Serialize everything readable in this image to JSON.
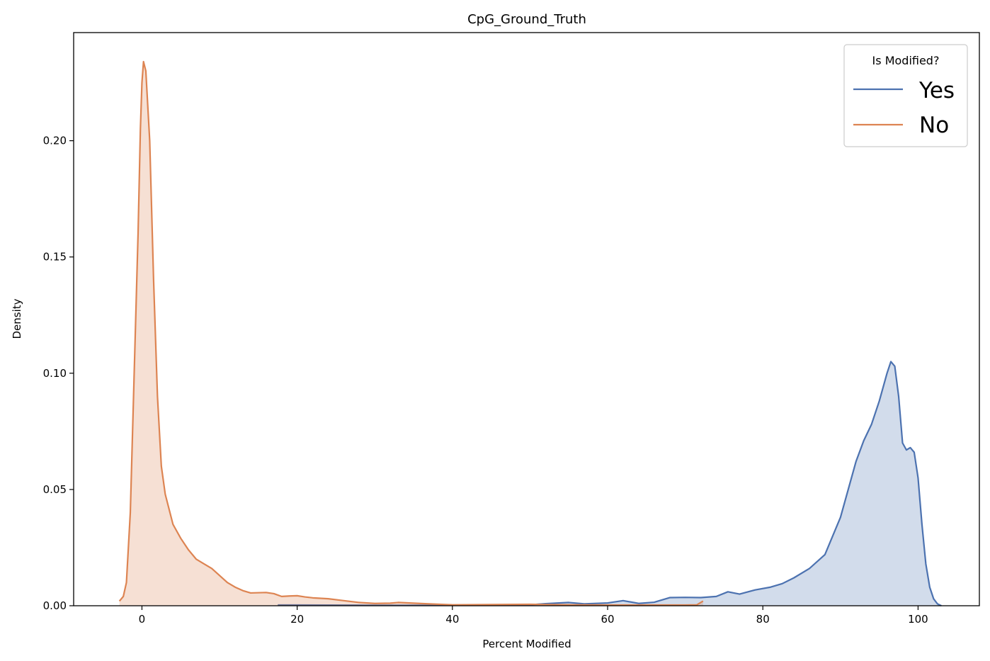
{
  "chart_data": {
    "type": "area",
    "title": "CpG_Ground_Truth",
    "xlabel": "Percent Modified",
    "ylabel": "Density",
    "xlim": [
      -8.8,
      107.9
    ],
    "ylim": [
      0,
      0.2465
    ],
    "x_ticks": [
      0,
      20,
      40,
      60,
      80,
      100
    ],
    "x_tick_labels": [
      "0",
      "20",
      "40",
      "60",
      "80",
      "100"
    ],
    "y_ticks": [
      0.0,
      0.05,
      0.1,
      0.15,
      0.2
    ],
    "y_tick_labels": [
      "0.00",
      "0.05",
      "0.10",
      "0.15",
      "0.20"
    ],
    "grid": false,
    "legend": {
      "title": "Is Modified?",
      "placement": "top-right"
    },
    "series": [
      {
        "name": "Yes",
        "color": "#4c72b0",
        "x": [
          17.5,
          20,
          30,
          40,
          45,
          50,
          52,
          55,
          57,
          60,
          62,
          64,
          66,
          68,
          70,
          72,
          74,
          75.5,
          77,
          79,
          81,
          82.5,
          84,
          86,
          88,
          90,
          91,
          92,
          93,
          94,
          95,
          96,
          96.5,
          97,
          97.5,
          98,
          98.5,
          99,
          99.5,
          100,
          100.5,
          101,
          101.5,
          102,
          102.5,
          103
        ],
        "y": [
          0.0003,
          0.0003,
          0.0002,
          0.0002,
          0.0003,
          0.0004,
          0.0009,
          0.0014,
          0.0008,
          0.0012,
          0.0022,
          0.001,
          0.0015,
          0.0035,
          0.0036,
          0.0035,
          0.004,
          0.006,
          0.005,
          0.0068,
          0.008,
          0.0095,
          0.012,
          0.016,
          0.022,
          0.038,
          0.05,
          0.062,
          0.071,
          0.078,
          0.088,
          0.1,
          0.105,
          0.103,
          0.09,
          0.07,
          0.067,
          0.068,
          0.066,
          0.055,
          0.035,
          0.018,
          0.008,
          0.003,
          0.0008,
          0.0
        ]
      },
      {
        "name": "No",
        "color": "#dd8452",
        "x": [
          -2.9,
          -2.4,
          -2,
          -1.5,
          -1,
          -0.5,
          -0.2,
          0,
          0.2,
          0.5,
          1,
          1.5,
          2,
          2.5,
          3,
          4,
          5,
          6,
          7,
          8,
          9,
          10,
          11,
          12,
          13,
          14,
          16,
          17,
          18,
          19,
          20,
          21,
          22,
          24,
          26,
          28,
          30,
          32,
          33,
          35,
          37,
          40,
          45,
          50,
          55,
          60,
          65,
          70,
          71.5,
          72.3
        ],
        "y": [
          0.002,
          0.004,
          0.01,
          0.04,
          0.1,
          0.16,
          0.205,
          0.225,
          0.234,
          0.23,
          0.2,
          0.14,
          0.09,
          0.06,
          0.048,
          0.035,
          0.029,
          0.024,
          0.02,
          0.018,
          0.016,
          0.013,
          0.01,
          0.008,
          0.0065,
          0.0055,
          0.0057,
          0.0052,
          0.004,
          0.0042,
          0.0043,
          0.0038,
          0.0034,
          0.003,
          0.0022,
          0.0014,
          0.001,
          0.0011,
          0.0014,
          0.0011,
          0.0008,
          0.0004,
          0.0005,
          0.0006,
          0.0004,
          0.0003,
          0.0003,
          0.0003,
          0.0004,
          0.002
        ]
      }
    ]
  }
}
